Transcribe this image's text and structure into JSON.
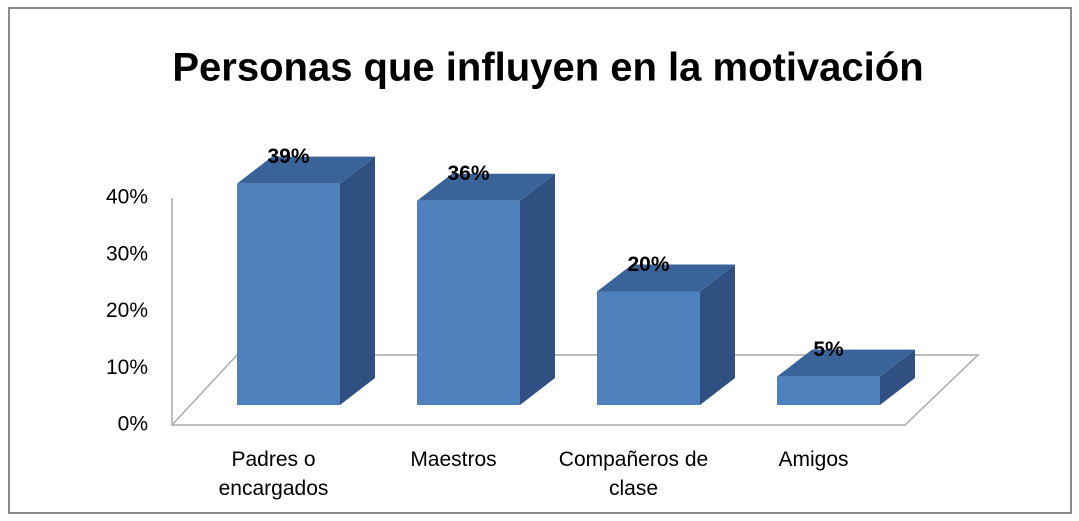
{
  "chart_data": {
    "type": "bar3d",
    "title": "Personas que influyen en la motivación",
    "categories": [
      "Padres o encargados",
      "Maestros",
      "Compañeros de clase",
      "Amigos"
    ],
    "values": [
      39,
      36,
      20,
      5
    ],
    "value_labels": [
      "39%",
      "36%",
      "20%",
      "5%"
    ],
    "color": "#4f81bd",
    "ylim": [
      0,
      40
    ],
    "yticks": [
      {
        "value": 0,
        "label": "0%"
      },
      {
        "value": 10,
        "label": "10%"
      },
      {
        "value": 20,
        "label": "20%"
      },
      {
        "value": 30,
        "label": "30%"
      },
      {
        "value": 40,
        "label": "40%"
      }
    ],
    "grid": false
  }
}
